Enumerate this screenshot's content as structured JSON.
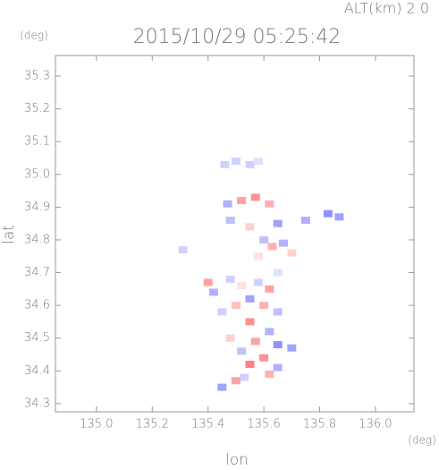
{
  "chart_data": {
    "type": "scatter",
    "title": "2015/10/29 05:25:42",
    "annotation": "ALT(km) 2.0",
    "ylabel": "lat",
    "xlabel": "lon",
    "yunit": "(deg)",
    "xunit": "(deg)",
    "xlim": [
      134.853,
      136.138
    ],
    "ylim": [
      34.275,
      35.363
    ],
    "xticks": [
      {
        "value": 135,
        "label": "135.0"
      },
      135.2,
      135.4,
      135.6,
      135.8,
      {
        "value": 136,
        "label": "136.0"
      }
    ],
    "yticks": [
      34.3,
      34.4,
      34.5,
      34.6,
      34.7,
      34.8,
      34.9,
      {
        "value": 35,
        "label": "35.0"
      },
      35.1,
      35.2,
      35.3
    ],
    "colormap": [
      "#3a3aff",
      "#ffffff",
      "#ff3a3a"
    ],
    "clim": [
      -1,
      1
    ],
    "x": [
      135.5,
      135.55,
      135.58,
      135.46,
      135.52,
      135.47,
      135.57,
      135.62,
      135.65,
      135.75,
      135.83,
      135.87,
      135.48,
      135.55,
      135.6,
      135.67,
      135.63,
      135.7,
      135.4,
      135.42,
      135.48,
      135.52,
      135.58,
      135.62,
      135.65,
      135.55,
      135.5,
      135.6,
      135.65,
      135.45,
      135.55,
      135.62,
      135.57,
      135.65,
      135.7,
      135.52,
      135.48,
      135.6,
      135.55,
      135.65,
      135.62,
      135.5,
      135.45,
      135.53,
      135.31,
      135.58
    ],
    "y": [
      35.04,
      35.03,
      35.04,
      35.03,
      34.92,
      34.91,
      34.93,
      34.91,
      34.85,
      34.86,
      34.88,
      34.87,
      34.86,
      34.84,
      34.8,
      34.79,
      34.78,
      34.76,
      34.67,
      34.64,
      34.68,
      34.66,
      34.67,
      34.65,
      34.7,
      34.62,
      34.6,
      34.6,
      34.58,
      34.58,
      34.55,
      34.52,
      34.49,
      34.48,
      34.47,
      34.46,
      34.5,
      34.44,
      34.42,
      34.41,
      34.39,
      34.37,
      34.35,
      34.38,
      34.77,
      34.75
    ],
    "values": [
      -0.3,
      -0.3,
      -0.2,
      -0.3,
      0.6,
      -0.5,
      0.7,
      0.5,
      -0.6,
      -0.5,
      -0.7,
      -0.6,
      -0.4,
      0.3,
      -0.4,
      -0.5,
      0.5,
      0.3,
      0.6,
      -0.5,
      -0.3,
      0.2,
      -0.3,
      0.6,
      -0.2,
      -0.6,
      0.4,
      0.5,
      -0.4,
      -0.3,
      0.7,
      -0.5,
      0.6,
      -0.7,
      -0.6,
      -0.4,
      0.3,
      0.7,
      0.8,
      -0.5,
      0.5,
      0.6,
      -0.6,
      -0.3,
      -0.3,
      0.2
    ]
  }
}
